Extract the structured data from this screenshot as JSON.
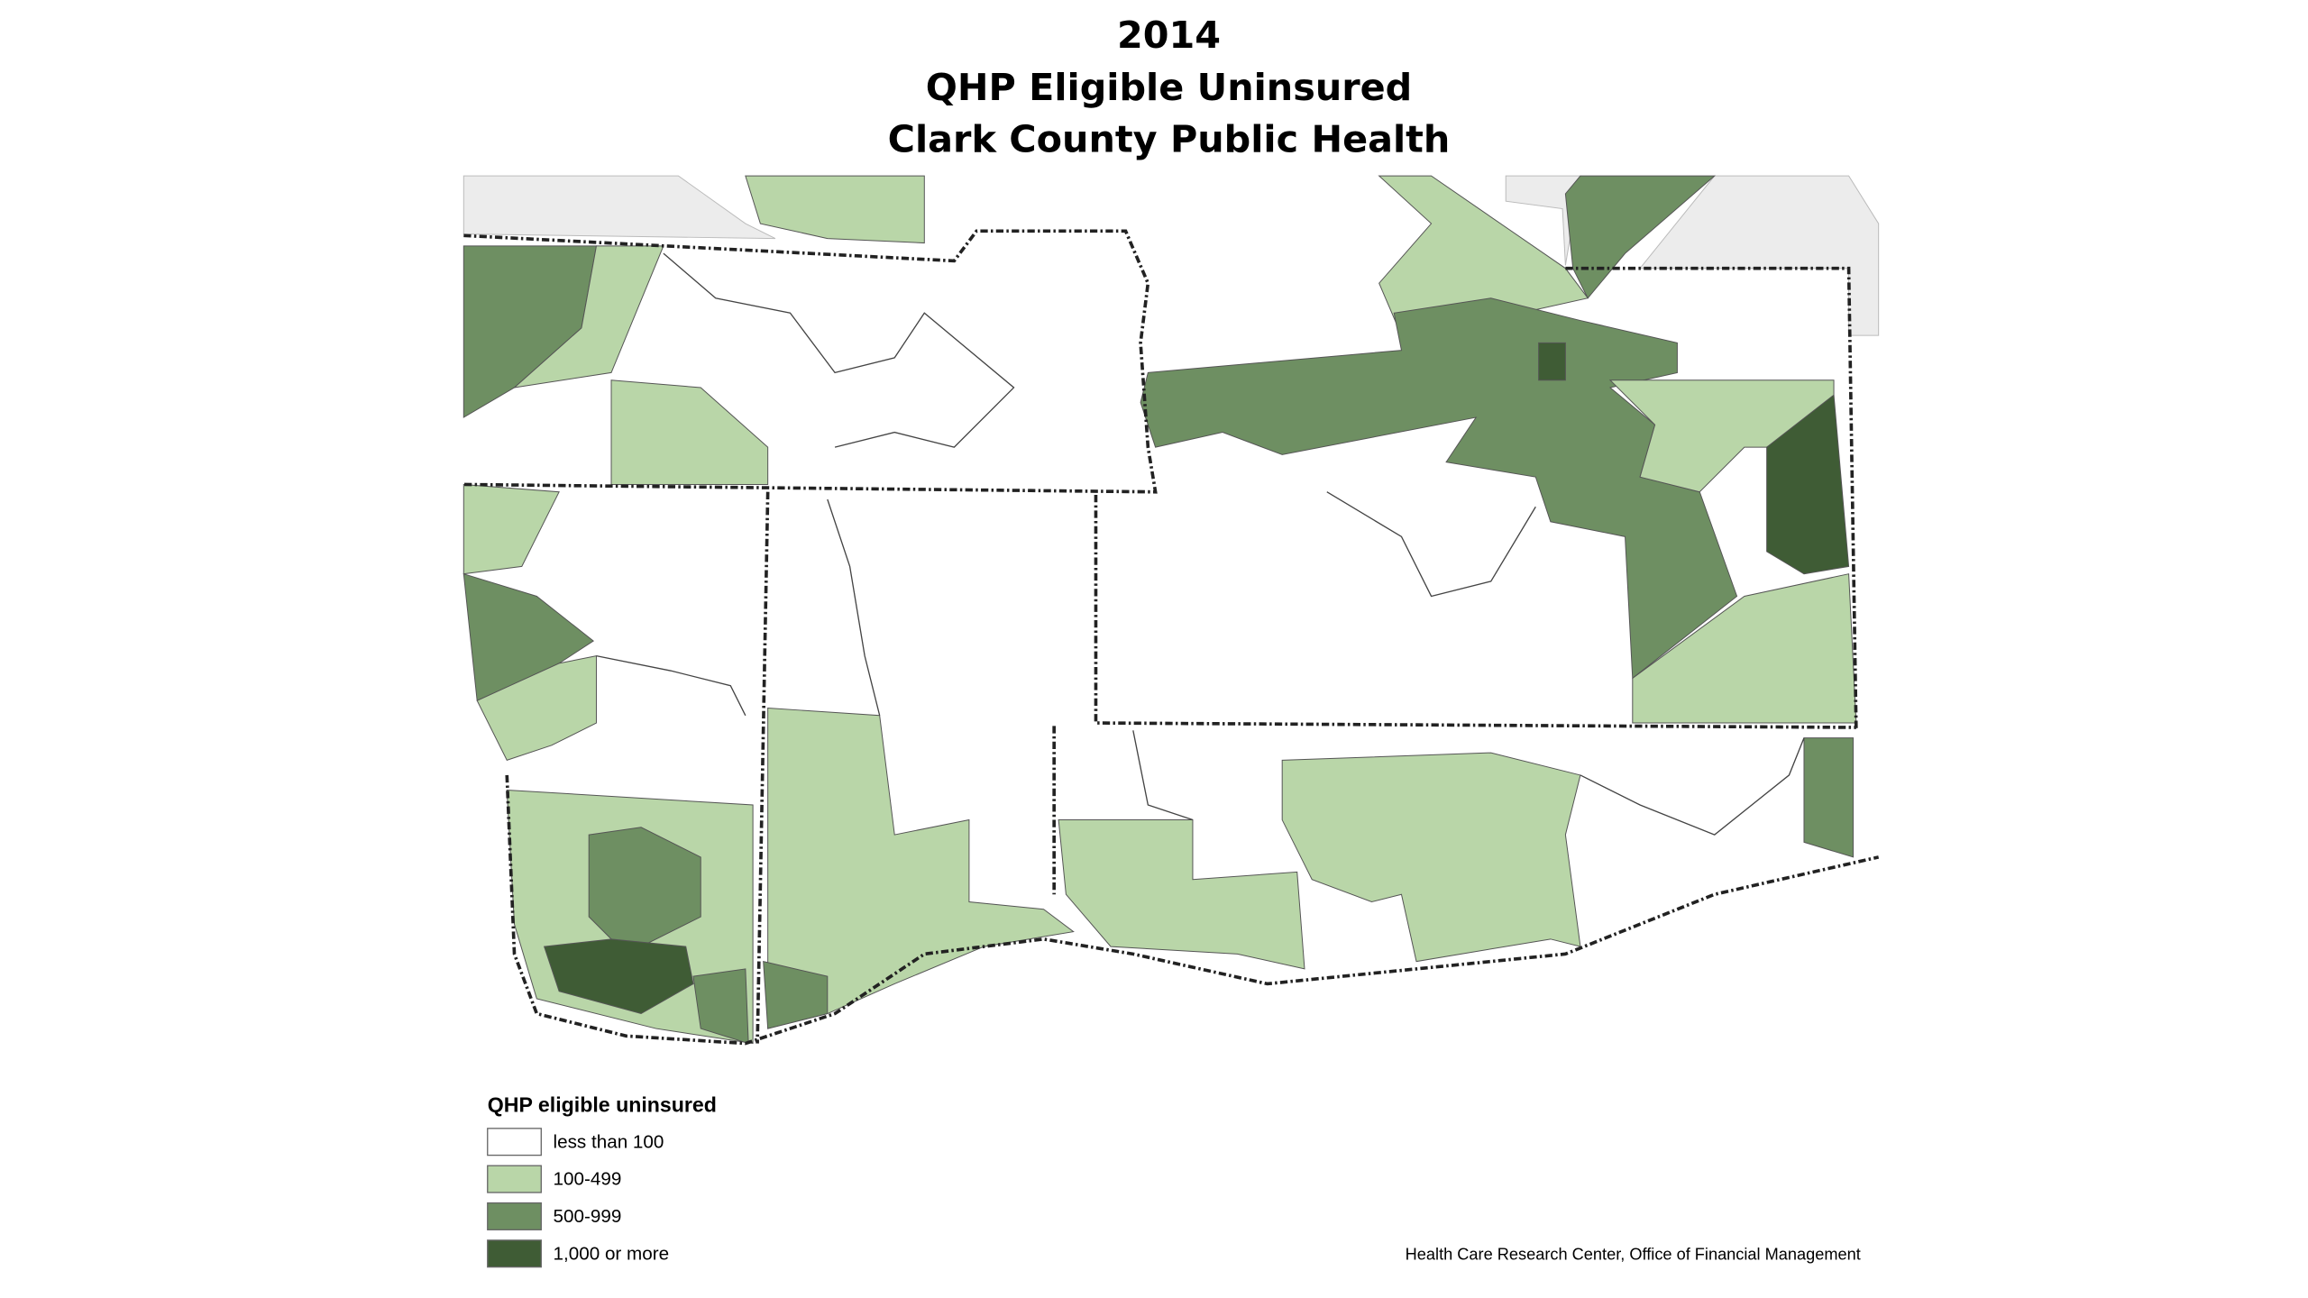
{
  "title": [
    "2014",
    "QHP Eligible Uninsured",
    "Clark County Public Health"
  ],
  "legend": {
    "title": "QHP eligible uninsured",
    "items": [
      {
        "label": "less than 100",
        "color": "#ffffff"
      },
      {
        "label": "100-499",
        "color": "#b9d6a8"
      },
      {
        "label": "500-999",
        "color": "#6e8f62"
      },
      {
        "label": "1,000 or more",
        "color": "#3f5c35"
      }
    ]
  },
  "source": "Health Care Research Center, Office of Financial Management"
}
